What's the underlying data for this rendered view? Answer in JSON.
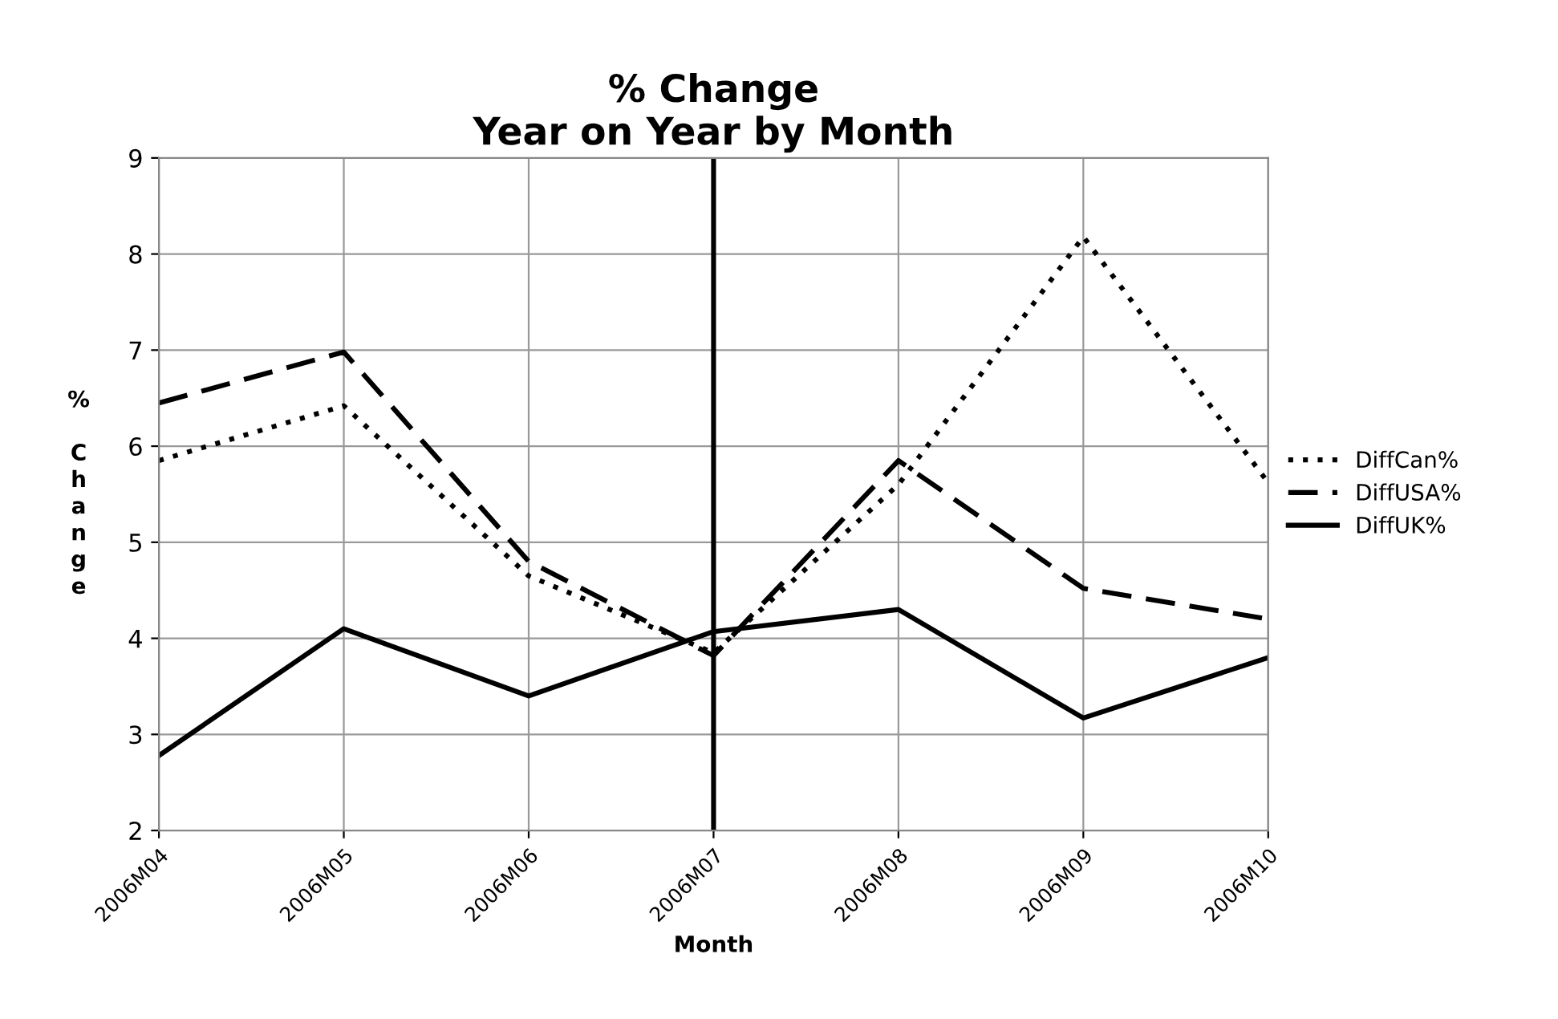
{
  "chart_data": {
    "type": "line",
    "title": "% Change\nYear on Year by Month",
    "xlabel": "Month",
    "ylabel": "% Change",
    "categories": [
      "2006M04",
      "2006M05",
      "2006M06",
      "2006M07",
      "2006M08",
      "2006M09",
      "2006M10"
    ],
    "series": [
      {
        "name": "DiffCan%",
        "color": "#000000",
        "line_style": "dotted",
        "values": [
          5.85,
          6.42,
          4.65,
          3.85,
          5.6,
          8.18,
          5.62
        ]
      },
      {
        "name": "DiffUSA%",
        "color": "#000000",
        "line_style": "dashed",
        "values": [
          6.45,
          6.98,
          4.8,
          3.82,
          5.85,
          4.52,
          4.2
        ]
      },
      {
        "name": "DiffUK%",
        "color": "#000000",
        "line_style": "solid",
        "values": [
          2.78,
          4.1,
          3.4,
          4.07,
          4.3,
          3.17,
          3.8
        ]
      }
    ],
    "ylim": [
      2,
      9
    ],
    "yticks": [
      2,
      3,
      4,
      5,
      6,
      7,
      8,
      9
    ],
    "ref_lines": [
      {
        "axis": "x",
        "value": "2006M07",
        "color": "#000000",
        "line_style": "solid"
      }
    ],
    "grid": true,
    "legend": "right",
    "marker": "none"
  }
}
